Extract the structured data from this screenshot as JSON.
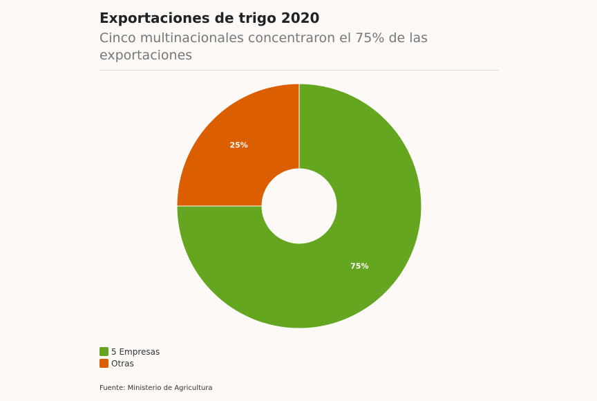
{
  "header": {
    "title": "Exportaciones de trigo 2020",
    "subtitle": "Cinco multinacionales concentraron el 75% de las exportaciones"
  },
  "chart_data": {
    "type": "pie",
    "donut": true,
    "categories": [
      "5 Empresas",
      "Otras"
    ],
    "values": [
      75,
      25
    ],
    "labels": [
      "75%",
      "25%"
    ],
    "colors": [
      "#65a621",
      "#db5f00"
    ],
    "title": "Exportaciones de trigo 2020",
    "subtitle": "Cinco multinacionales concentraron el 75% de las exportaciones",
    "legend_position": "bottom-left"
  },
  "legend": {
    "items": [
      {
        "label": "5 Empresas",
        "color": "#65a621"
      },
      {
        "label": "Otras",
        "color": "#db5f00"
      }
    ]
  },
  "footer": {
    "source": "Fuente: Ministerio de Agricultura"
  }
}
